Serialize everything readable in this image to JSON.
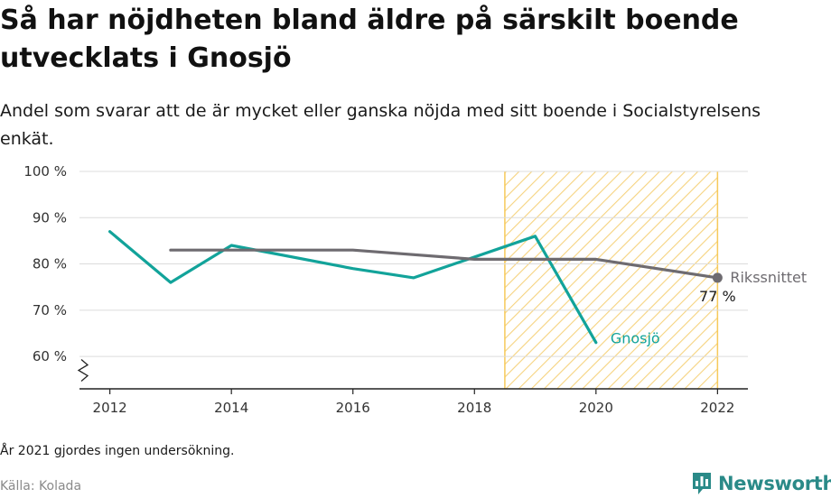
{
  "title": "Så har nöjdheten bland äldre på särskilt boende utvecklats i Gnosjö",
  "subtitle": "Andel som svarar att de är mycket eller ganska nöjda med sitt boende i Socialstyrelsens enkät.",
  "note": "År 2021 gjordes ingen undersökning.",
  "source": "Källa: Kolada",
  "brand": {
    "name": "Newsworthy",
    "color": "#2a8a88",
    "icon": "chat-bar-chart-icon"
  },
  "chart_data": {
    "type": "line",
    "xlim": [
      2011.5,
      2022.5
    ],
    "ylim": [
      53,
      100
    ],
    "x_ticks": [
      2012,
      2014,
      2016,
      2018,
      2020,
      2022
    ],
    "x_tick_labels": [
      "2012",
      "2014",
      "2016",
      "2018",
      "2020",
      "2022"
    ],
    "y_ticks": [
      60,
      70,
      80,
      90,
      100
    ],
    "y_tick_labels": [
      "60 %",
      "70 %",
      "80 %",
      "90 %",
      "100 %"
    ],
    "axis_break": true,
    "grid": true,
    "highlight_region": {
      "x": [
        2018.5,
        2022
      ],
      "pattern": "diagonal-hatch",
      "color": "#f6c95a"
    },
    "series": [
      {
        "name": "Gnosjö",
        "color": "#12a39a",
        "x": [
          2012,
          2013,
          2014,
          2016,
          2017,
          2019,
          2020
        ],
        "y": [
          87,
          76,
          84,
          79,
          77,
          86,
          63
        ],
        "label_color": "#12a39a"
      },
      {
        "name": "Rikssnittet",
        "color": "#6e6b70",
        "x": [
          2013,
          2014,
          2016,
          2018,
          2019,
          2020,
          2022
        ],
        "y": [
          83,
          83,
          83,
          81,
          81,
          81,
          77
        ],
        "label_color": "#6e6b70",
        "end_marker": true,
        "end_value_label": "77 %"
      }
    ]
  }
}
